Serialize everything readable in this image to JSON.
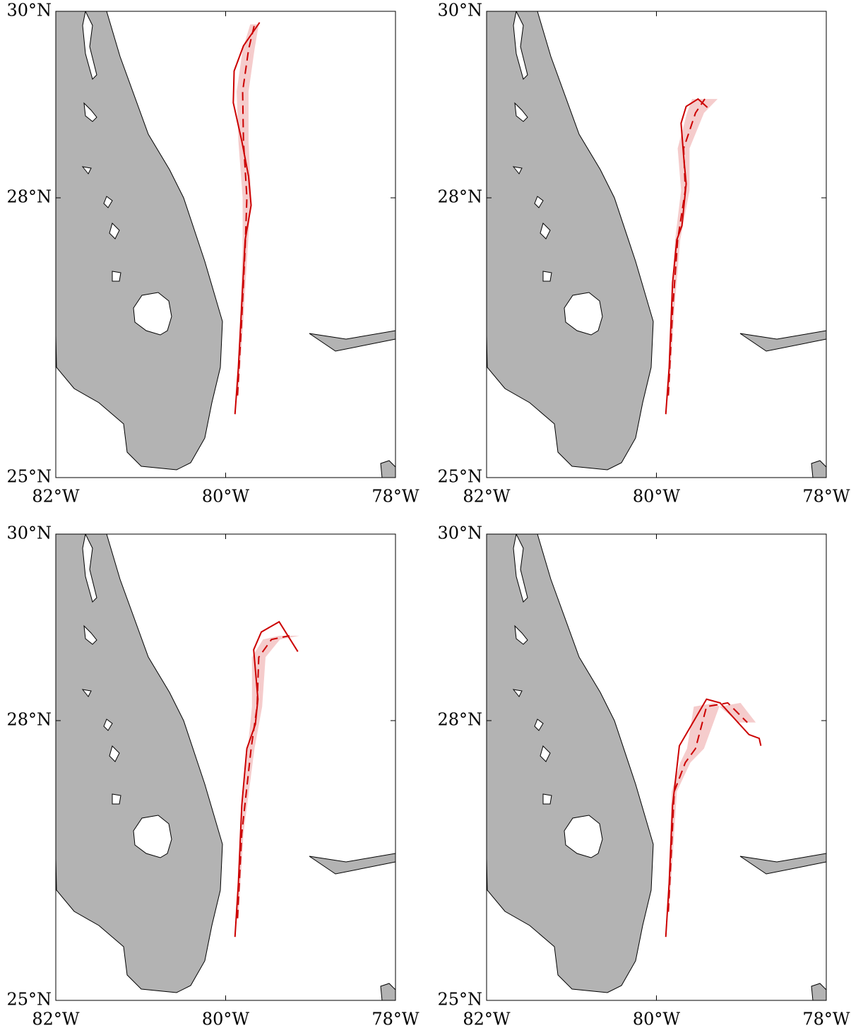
{
  "chart_data": [
    {
      "type": "map",
      "xlim": [
        -82,
        -78
      ],
      "ylim": [
        25,
        30
      ],
      "xticks": [
        {
          "value": -82,
          "label": "82°W"
        },
        {
          "value": -80,
          "label": "80°W"
        },
        {
          "value": -78,
          "label": "78°W"
        }
      ],
      "yticks": [
        {
          "value": 25,
          "label": "25°N"
        },
        {
          "value": 28,
          "label": "28°N"
        },
        {
          "value": 30,
          "label": "30°N"
        }
      ],
      "series": [
        {
          "style": "dashed",
          "color": "#cc0000",
          "band_color": "#f5cccc",
          "x": [
            -79.86,
            -79.81,
            -79.77,
            -79.75,
            -79.79,
            -79.8,
            -79.73,
            -79.66
          ],
          "y": [
            25.88,
            26.71,
            27.47,
            28.0,
            28.61,
            29.14,
            29.59,
            29.86
          ],
          "spread": [
            0.01,
            0.02,
            0.03,
            0.05,
            0.06,
            0.07,
            0.07,
            0.05
          ]
        },
        {
          "style": "solid",
          "color": "#cc0000",
          "x": [
            -79.89,
            -79.85,
            -79.81,
            -79.77,
            -79.7,
            -79.73,
            -79.81,
            -79.91,
            -79.9,
            -79.79,
            -79.6
          ],
          "y": [
            25.68,
            26.18,
            26.86,
            27.55,
            27.92,
            28.23,
            28.61,
            29.02,
            29.36,
            29.63,
            29.88
          ]
        }
      ]
    },
    {
      "type": "map",
      "xlim": [
        -82,
        -78
      ],
      "ylim": [
        25,
        30
      ],
      "xticks": [
        {
          "value": -82,
          "label": "82°W"
        },
        {
          "value": -80,
          "label": "80°W"
        },
        {
          "value": -78,
          "label": "78°W"
        }
      ],
      "yticks": [
        {
          "value": 25,
          "label": "25°N"
        },
        {
          "value": 28,
          "label": "28°N"
        },
        {
          "value": 30,
          "label": "30°N"
        }
      ],
      "series": [
        {
          "style": "dashed",
          "color": "#cc0000",
          "band_color": "#f5cccc",
          "x": [
            -79.86,
            -79.81,
            -79.75,
            -79.66,
            -79.68,
            -79.54,
            -79.43
          ],
          "y": [
            25.88,
            26.79,
            27.55,
            28.08,
            28.53,
            28.91,
            29.06
          ],
          "spread": [
            0.01,
            0.02,
            0.03,
            0.05,
            0.07,
            0.1,
            0.15
          ]
        },
        {
          "style": "solid",
          "color": "#cc0000",
          "x": [
            -79.89,
            -79.85,
            -79.81,
            -79.76,
            -79.7,
            -79.65,
            -79.68,
            -79.71,
            -79.65,
            -79.51,
            -79.4
          ],
          "y": [
            25.68,
            26.18,
            27.09,
            27.55,
            27.7,
            28.15,
            28.45,
            28.8,
            28.98,
            29.06,
            28.97
          ]
        }
      ]
    },
    {
      "type": "map",
      "xlim": [
        -82,
        -78
      ],
      "ylim": [
        25,
        30
      ],
      "xticks": [
        {
          "value": -82,
          "label": "82°W"
        },
        {
          "value": -80,
          "label": "80°W"
        },
        {
          "value": -78,
          "label": "78°W"
        }
      ],
      "yticks": [
        {
          "value": 25,
          "label": "25°N"
        },
        {
          "value": 28,
          "label": "28°N"
        },
        {
          "value": 30,
          "label": "30°N"
        }
      ],
      "series": [
        {
          "style": "dashed",
          "color": "#cc0000",
          "band_color": "#f5cccc",
          "x": [
            -79.86,
            -79.81,
            -79.7,
            -79.63,
            -79.61,
            -79.46,
            -79.25
          ],
          "y": [
            25.88,
            26.79,
            27.7,
            28.15,
            28.68,
            28.87,
            28.91
          ],
          "spread": [
            0.01,
            0.02,
            0.04,
            0.06,
            0.08,
            0.1,
            0.12
          ]
        },
        {
          "style": "solid",
          "color": "#cc0000",
          "x": [
            -79.89,
            -79.85,
            -79.81,
            -79.75,
            -79.65,
            -79.62,
            -79.67,
            -79.58,
            -79.37,
            -79.15
          ],
          "y": [
            25.68,
            26.26,
            27.09,
            27.7,
            27.96,
            28.23,
            28.76,
            28.95,
            29.06,
            28.74
          ]
        }
      ]
    },
    {
      "type": "map",
      "xlim": [
        -82,
        -78
      ],
      "ylim": [
        25,
        30
      ],
      "xticks": [
        {
          "value": -82,
          "label": "82°W"
        },
        {
          "value": -80,
          "label": "80°W"
        },
        {
          "value": -78,
          "label": "78°W"
        }
      ],
      "yticks": [
        {
          "value": 25,
          "label": "25°N"
        },
        {
          "value": 28,
          "label": "28°N"
        },
        {
          "value": 30,
          "label": "30°N"
        }
      ],
      "series": [
        {
          "style": "dashed",
          "color": "#cc0000",
          "band_color": "#f5cccc",
          "x": [
            -79.86,
            -79.79,
            -79.66,
            -79.54,
            -79.41,
            -79.16,
            -78.93
          ],
          "y": [
            25.95,
            27.24,
            27.55,
            27.7,
            28.15,
            28.19,
            27.98
          ],
          "spread": [
            0.01,
            0.03,
            0.06,
            0.1,
            0.15,
            0.15,
            0.1
          ]
        },
        {
          "style": "solid",
          "color": "#cc0000",
          "x": [
            -79.89,
            -79.85,
            -79.81,
            -79.73,
            -79.41,
            -79.25,
            -78.91,
            -78.79,
            -78.77
          ],
          "y": [
            25.68,
            26.26,
            27.09,
            27.73,
            28.23,
            28.19,
            27.85,
            27.81,
            27.73
          ]
        }
      ]
    }
  ]
}
